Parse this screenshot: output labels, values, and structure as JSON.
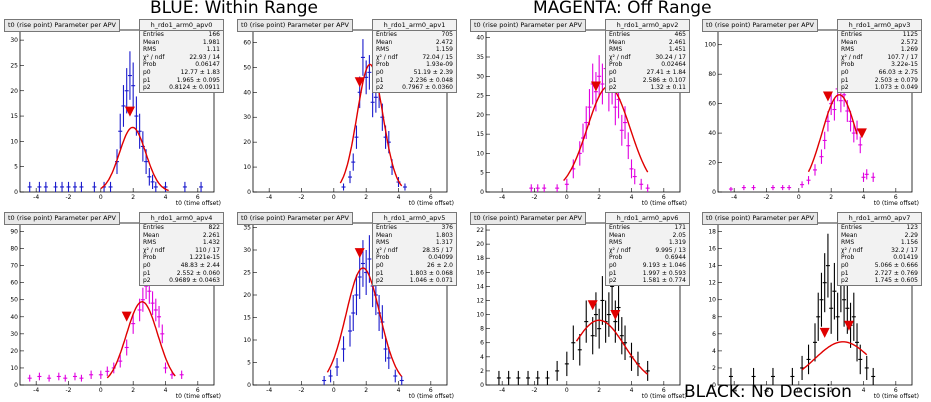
{
  "banners": {
    "blue": "BLUE: Within Range",
    "magenta": "MAGENTA: Off Range",
    "black": "BLACK: No Decision"
  },
  "colors": {
    "blue": "#1a1acc",
    "magenta": "#e000e0",
    "black": "#000000",
    "fit": "#e00000",
    "marker": "#e00000"
  },
  "chart_data": [
    {
      "type": "scatter",
      "title": "t0 (rise point) Parameter per APV",
      "hist": "h_rdo1_arm0_apv0",
      "xlabel": "t0 (time offset)",
      "color": "blue",
      "xlim": [
        -5,
        7
      ],
      "ylim": [
        0,
        32
      ],
      "yticks": [
        0,
        5,
        10,
        15,
        20,
        25,
        30
      ],
      "xticks": [
        -4,
        -2,
        0,
        2,
        4,
        6
      ],
      "stats": [
        [
          "Entries",
          "166"
        ],
        [
          "Mean",
          "1.981"
        ],
        [
          "RMS",
          "1.11"
        ],
        [
          "χ² / ndf",
          "22.93 / 14"
        ],
        [
          "Prob",
          "0.06147"
        ],
        [
          "p0",
          "12.77 ± 1.83"
        ],
        [
          "p1",
          "1.965 ± 0.095"
        ],
        [
          "p2",
          "0.8124 ± 0.0911"
        ]
      ],
      "points": [
        [
          -4.4,
          1
        ],
        [
          -3.8,
          1
        ],
        [
          -3.4,
          1
        ],
        [
          -2.8,
          1
        ],
        [
          -2.4,
          1
        ],
        [
          -2,
          1
        ],
        [
          -1.6,
          1
        ],
        [
          -1.2,
          1
        ],
        [
          -0.4,
          1
        ],
        [
          0.2,
          1
        ],
        [
          0.6,
          1
        ],
        [
          1,
          6
        ],
        [
          1.2,
          12
        ],
        [
          1.4,
          17
        ],
        [
          1.6,
          20
        ],
        [
          1.8,
          23
        ],
        [
          2,
          21
        ],
        [
          2.2,
          15
        ],
        [
          2.4,
          12
        ],
        [
          2.6,
          9
        ],
        [
          2.8,
          6
        ],
        [
          3,
          3
        ],
        [
          3.2,
          2
        ],
        [
          3.4,
          1
        ],
        [
          4,
          1
        ],
        [
          5.2,
          1
        ],
        [
          6.2,
          1
        ]
      ],
      "fit": {
        "p0": 12.77,
        "p1": 1.965,
        "p2": 0.8124,
        "range": [
          0,
          4.2
        ]
      },
      "markers": [
        1.8
      ]
    },
    {
      "type": "scatter",
      "title": "t0 (rise point) Parameter per APV",
      "hist": "h_rdo1_arm0_apv1",
      "xlabel": "t0 (time offset)",
      "color": "blue",
      "xlim": [
        -5,
        7
      ],
      "ylim": [
        0,
        65
      ],
      "yticks": [
        0,
        10,
        20,
        30,
        40,
        50,
        60
      ],
      "xticks": [
        -4,
        -2,
        0,
        2,
        4,
        6
      ],
      "stats": [
        [
          "Entries",
          "705"
        ],
        [
          "Mean",
          "2.472"
        ],
        [
          "RMS",
          "1.159"
        ],
        [
          "χ² / ndf",
          "72.04 / 15"
        ],
        [
          "Prob",
          "1.93e-09"
        ],
        [
          "p0",
          "51.19 ± 2.39"
        ],
        [
          "p1",
          "2.236 ± 0.048"
        ],
        [
          "p2",
          "0.7967 ± 0.0360"
        ]
      ],
      "points": [
        [
          0.6,
          2
        ],
        [
          1,
          6
        ],
        [
          1.2,
          12
        ],
        [
          1.4,
          22
        ],
        [
          1.6,
          40
        ],
        [
          1.8,
          54
        ],
        [
          2,
          46
        ],
        [
          2.2,
          48
        ],
        [
          2.4,
          36
        ],
        [
          2.6,
          38
        ],
        [
          2.8,
          40
        ],
        [
          3,
          30
        ],
        [
          3.2,
          22
        ],
        [
          3.4,
          20
        ],
        [
          3.6,
          10
        ],
        [
          4,
          4
        ],
        [
          4.4,
          2
        ]
      ],
      "fit": {
        "p0": 51.19,
        "p1": 2.236,
        "p2": 0.7967,
        "range": [
          0.4,
          4.2
        ]
      },
      "markers": [
        1.6
      ]
    },
    {
      "type": "scatter",
      "title": "t0 (rise point) Parameter per APV",
      "hist": "h_rdo1_arm0_apv2",
      "xlabel": "t0 (time offset)",
      "color": "magenta",
      "xlim": [
        -5,
        7
      ],
      "ylim": [
        0,
        42
      ],
      "yticks": [
        0,
        5,
        10,
        15,
        20,
        25,
        30,
        35,
        40
      ],
      "xticks": [
        -4,
        -2,
        0,
        2,
        4,
        6
      ],
      "stats": [
        [
          "Entries",
          "465"
        ],
        [
          "Mean",
          "2.461"
        ],
        [
          "RMS",
          "1.451"
        ],
        [
          "χ² / ndf",
          "30.24 / 17"
        ],
        [
          "Prob",
          "0.02464"
        ],
        [
          "p0",
          "27.41 ± 1.84"
        ],
        [
          "p1",
          "2.586 ± 0.107"
        ],
        [
          "p2",
          "1.32 ± 0.11"
        ]
      ],
      "points": [
        [
          -2.2,
          1
        ],
        [
          -1.8,
          1
        ],
        [
          -1.4,
          1
        ],
        [
          -0.6,
          1
        ],
        [
          0,
          2
        ],
        [
          0.4,
          6
        ],
        [
          0.8,
          10
        ],
        [
          1,
          14
        ],
        [
          1.2,
          18
        ],
        [
          1.4,
          22
        ],
        [
          1.6,
          28
        ],
        [
          1.8,
          26
        ],
        [
          2,
          30
        ],
        [
          2.2,
          28
        ],
        [
          2.4,
          32
        ],
        [
          2.6,
          26
        ],
        [
          2.8,
          28
        ],
        [
          3,
          22
        ],
        [
          3.2,
          24
        ],
        [
          3.4,
          16
        ],
        [
          3.6,
          18
        ],
        [
          3.8,
          12
        ],
        [
          4,
          6
        ],
        [
          4.2,
          4
        ],
        [
          4.6,
          2
        ],
        [
          5,
          1
        ]
      ],
      "fit": {
        "p0": 27.41,
        "p1": 2.586,
        "p2": 1.32,
        "range": [
          -0.2,
          5.0
        ]
      },
      "markers": [
        1.8
      ]
    },
    {
      "type": "scatter",
      "title": "t0 (rise point) Parameter per APV",
      "hist": "h_rdo1_arm0_apv3",
      "xlabel": "t0 (time offset)",
      "color": "magenta",
      "xlim": [
        -5,
        7
      ],
      "ylim": [
        0,
        110
      ],
      "yticks": [
        0,
        20,
        40,
        60,
        80,
        100
      ],
      "xticks": [
        -4,
        -2,
        0,
        2,
        4,
        6
      ],
      "stats": [
        [
          "Entries",
          "1125"
        ],
        [
          "Mean",
          "2.572"
        ],
        [
          "RMS",
          "1.269"
        ],
        [
          "χ² / ndf",
          "107.7 / 17"
        ],
        [
          "Prob",
          "3.22e-15"
        ],
        [
          "p0",
          "66.03 ± 2.75"
        ],
        [
          "p1",
          "2.503 ± 0.079"
        ],
        [
          "p2",
          "1.073 ± 0.049"
        ]
      ],
      "points": [
        [
          -4.2,
          2
        ],
        [
          -3.4,
          3
        ],
        [
          -2.8,
          3
        ],
        [
          -1.6,
          3
        ],
        [
          -1,
          3
        ],
        [
          -0.6,
          3
        ],
        [
          0.2,
          5
        ],
        [
          0.6,
          8
        ],
        [
          1,
          15
        ],
        [
          1.4,
          24
        ],
        [
          1.6,
          35
        ],
        [
          1.8,
          48
        ],
        [
          2,
          60
        ],
        [
          2.2,
          56
        ],
        [
          2.4,
          70
        ],
        [
          2.6,
          62
        ],
        [
          2.8,
          66
        ],
        [
          3,
          55
        ],
        [
          3.2,
          48
        ],
        [
          3.4,
          40
        ],
        [
          3.6,
          42
        ],
        [
          3.8,
          32
        ],
        [
          4,
          10
        ],
        [
          4.2,
          12
        ],
        [
          4.6,
          10
        ]
      ],
      "fit": {
        "p0": 66.03,
        "p1": 2.503,
        "p2": 1.073,
        "range": [
          0.6,
          3.6
        ]
      },
      "markers": [
        1.8,
        3.9
      ]
    },
    {
      "type": "scatter",
      "title": "t0 (rise point) Parameter per APV",
      "hist": "h_rdo1_arm0_apv4",
      "xlabel": "t0 (time offset)",
      "color": "magenta",
      "xlim": [
        -5,
        7
      ],
      "ylim": [
        0,
        95
      ],
      "yticks": [
        0,
        10,
        20,
        30,
        40,
        50,
        60,
        70,
        80,
        90
      ],
      "xticks": [
        -4,
        -2,
        0,
        2,
        4,
        6
      ],
      "stats": [
        [
          "Entries",
          "822"
        ],
        [
          "Mean",
          "2.261"
        ],
        [
          "RMS",
          "1.432"
        ],
        [
          "χ² / ndf",
          "110 / 17"
        ],
        [
          "Prob",
          "1.221e-15"
        ],
        [
          "p0",
          "48.83 ± 2.44"
        ],
        [
          "p1",
          "2.552 ± 0.060"
        ],
        [
          "p2",
          "0.9689 ± 0.0463"
        ]
      ],
      "points": [
        [
          -4.4,
          4
        ],
        [
          -3.8,
          5
        ],
        [
          -3.2,
          4
        ],
        [
          -2.6,
          5
        ],
        [
          -2.2,
          4
        ],
        [
          -1.6,
          5
        ],
        [
          -1.2,
          4
        ],
        [
          -0.6,
          6
        ],
        [
          0,
          6
        ],
        [
          0.4,
          8
        ],
        [
          0.8,
          10
        ],
        [
          1.2,
          14
        ],
        [
          1.6,
          22
        ],
        [
          2,
          36
        ],
        [
          2.4,
          44
        ],
        [
          2.6,
          50
        ],
        [
          2.8,
          58
        ],
        [
          3,
          55
        ],
        [
          3.2,
          48
        ],
        [
          3.4,
          44
        ],
        [
          3.6,
          40
        ],
        [
          3.8,
          30
        ],
        [
          4,
          10
        ],
        [
          4.4,
          6
        ],
        [
          5,
          6
        ]
      ],
      "fit": {
        "p0": 48.83,
        "p1": 2.552,
        "p2": 0.9689,
        "range": [
          0.4,
          4.6
        ]
      },
      "markers": [
        1.6
      ]
    },
    {
      "type": "scatter",
      "title": "t0 (rise point) Parameter per APV",
      "hist": "h_rdo1_arm0_apv5",
      "xlabel": "t0 (time offset)",
      "color": "blue",
      "xlim": [
        -5,
        7
      ],
      "ylim": [
        0,
        36
      ],
      "yticks": [
        0,
        5,
        10,
        15,
        20,
        25,
        30,
        35
      ],
      "xticks": [
        -4,
        -2,
        0,
        2,
        4,
        6
      ],
      "stats": [
        [
          "Entries",
          "376"
        ],
        [
          "Mean",
          "1.803"
        ],
        [
          "RMS",
          "1.317"
        ],
        [
          "χ² / ndf",
          "28.35 / 17"
        ],
        [
          "Prob",
          "0.04099"
        ],
        [
          "p0",
          "26 ± 2.0"
        ],
        [
          "p1",
          "1.803 ± 0.068"
        ],
        [
          "p2",
          "1.046 ± 0.071"
        ]
      ],
      "points": [
        [
          -0.6,
          1
        ],
        [
          -0.2,
          2
        ],
        [
          0.2,
          4
        ],
        [
          0.6,
          8
        ],
        [
          1,
          12
        ],
        [
          1.2,
          16
        ],
        [
          1.4,
          20
        ],
        [
          1.6,
          24
        ],
        [
          1.8,
          27
        ],
        [
          2,
          25
        ],
        [
          2.2,
          28
        ],
        [
          2.4,
          22
        ],
        [
          2.6,
          20
        ],
        [
          2.8,
          16
        ],
        [
          3,
          14
        ],
        [
          3.2,
          8
        ],
        [
          3.4,
          6
        ],
        [
          3.8,
          2
        ],
        [
          4.2,
          1
        ]
      ],
      "fit": {
        "p0": 26,
        "p1": 1.803,
        "p2": 1.046,
        "range": [
          -0.4,
          4.2
        ]
      },
      "markers": [
        1.6
      ]
    },
    {
      "type": "scatter",
      "title": "t0 (rise point) Parameter per APV",
      "hist": "h_rdo1_arm0_apv6",
      "xlabel": "t0 (time offset)",
      "color": "black",
      "xlim": [
        -5,
        7
      ],
      "ylim": [
        0,
        23
      ],
      "yticks": [
        0,
        2,
        4,
        6,
        8,
        10,
        12,
        14,
        16,
        18,
        20,
        22
      ],
      "xticks": [
        -4,
        -2,
        0,
        2,
        4,
        6
      ],
      "stats": [
        [
          "Entries",
          "171"
        ],
        [
          "Mean",
          "2.05"
        ],
        [
          "RMS",
          "1.319"
        ],
        [
          "χ² / ndf",
          "9.995 / 13"
        ],
        [
          "Prob",
          "0.6944"
        ],
        [
          "p0",
          "9.193 ± 1.046"
        ],
        [
          "p1",
          "1.997 ± 0.593"
        ],
        [
          "p2",
          "1.581 ± 0.774"
        ]
      ],
      "points": [
        [
          -4.2,
          1
        ],
        [
          -3.6,
          1
        ],
        [
          -3,
          1
        ],
        [
          -2.4,
          1
        ],
        [
          -1.8,
          1
        ],
        [
          -1.2,
          1
        ],
        [
          -0.6,
          2
        ],
        [
          0,
          3
        ],
        [
          0.4,
          6
        ],
        [
          0.8,
          5
        ],
        [
          1.2,
          9
        ],
        [
          1.6,
          7
        ],
        [
          1.8,
          10
        ],
        [
          2,
          8
        ],
        [
          2.2,
          12
        ],
        [
          2.4,
          9
        ],
        [
          2.6,
          10
        ],
        [
          2.8,
          14
        ],
        [
          3,
          9
        ],
        [
          3.2,
          11
        ],
        [
          3.4,
          7
        ],
        [
          3.6,
          6
        ],
        [
          4,
          4
        ],
        [
          4.4,
          3
        ],
        [
          5,
          2
        ]
      ],
      "fit": {
        "p0": 9.193,
        "p1": 1.997,
        "p2": 1.581,
        "range": [
          0.6,
          5.0
        ]
      },
      "markers": [
        1.6,
        3.0
      ]
    },
    {
      "type": "scatter",
      "title": "t0 (rise point) Parameter per APV",
      "hist": "h_rdo1_arm0_apv7",
      "xlabel": "t0 (time offset)",
      "color": "black",
      "xlim": [
        -5,
        7
      ],
      "ylim": [
        0,
        19
      ],
      "yticks": [
        0,
        2,
        4,
        6,
        8,
        10,
        12,
        14,
        16,
        18
      ],
      "xticks": [
        -4,
        -2,
        0,
        2,
        4,
        6
      ],
      "stats": [
        [
          "Entries",
          "123"
        ],
        [
          "Mean",
          "2.29"
        ],
        [
          "RMS",
          "1.156"
        ],
        [
          "χ² / ndf",
          "32.2 / 17"
        ],
        [
          "Prob",
          "0.01419"
        ],
        [
          "p0",
          "5.066 ± 0.666"
        ],
        [
          "p1",
          "2.727 ± 0.769"
        ],
        [
          "p2",
          "1.745 ± 0.605"
        ]
      ],
      "points": [
        [
          -4.2,
          1
        ],
        [
          -2.8,
          1
        ],
        [
          -1.6,
          1
        ],
        [
          -0.4,
          1
        ],
        [
          0.2,
          2
        ],
        [
          0.6,
          3
        ],
        [
          1,
          5
        ],
        [
          1.2,
          8
        ],
        [
          1.4,
          10
        ],
        [
          1.6,
          12
        ],
        [
          1.8,
          14
        ],
        [
          2,
          9
        ],
        [
          2.2,
          11
        ],
        [
          2.4,
          8
        ],
        [
          2.6,
          12
        ],
        [
          2.8,
          10
        ],
        [
          3,
          9
        ],
        [
          3.2,
          7
        ],
        [
          3.4,
          8
        ],
        [
          3.6,
          5
        ],
        [
          3.8,
          3
        ],
        [
          4.2,
          2
        ],
        [
          4.6,
          1
        ]
      ],
      "fit": {
        "p0": 5.066,
        "p1": 2.727,
        "p2": 1.745,
        "range": [
          0.2,
          4.2
        ]
      },
      "markers": [
        1.6,
        3.1
      ]
    }
  ]
}
